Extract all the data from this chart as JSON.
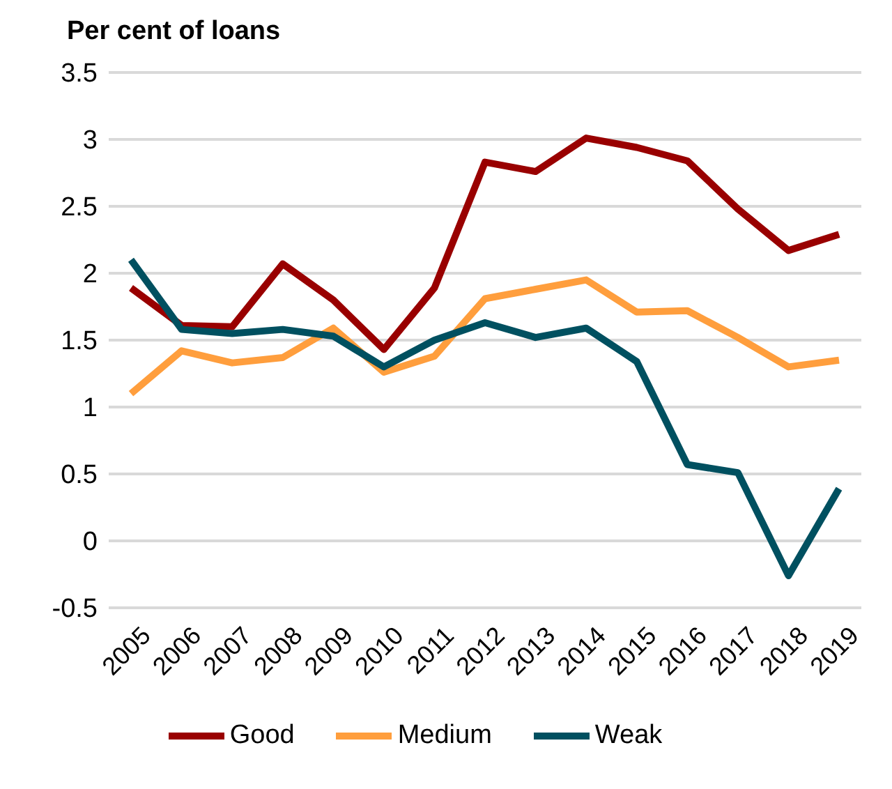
{
  "chart_data": {
    "type": "line",
    "ylabel": "Per cent of loans",
    "categories": [
      "2005",
      "2006",
      "2007",
      "2008",
      "2009",
      "2010",
      "2011",
      "2012",
      "2013",
      "2014",
      "2015",
      "2016",
      "2017",
      "2018",
      "2019"
    ],
    "series": [
      {
        "name": "Good",
        "color": "#990000",
        "values": [
          1.89,
          1.61,
          1.6,
          2.07,
          1.8,
          1.43,
          1.89,
          2.83,
          2.76,
          3.01,
          2.94,
          2.84,
          2.48,
          2.17,
          2.29
        ]
      },
      {
        "name": "Medium",
        "color": "#ff9e3d",
        "values": [
          1.1,
          1.42,
          1.33,
          1.37,
          1.59,
          1.26,
          1.38,
          1.81,
          1.88,
          1.95,
          1.71,
          1.72,
          1.52,
          1.3,
          1.35
        ]
      },
      {
        "name": "Weak",
        "color": "#005060",
        "values": [
          2.1,
          1.58,
          1.55,
          1.58,
          1.53,
          1.3,
          1.5,
          1.63,
          1.52,
          1.59,
          1.34,
          0.57,
          0.51,
          -0.26,
          0.39
        ]
      }
    ],
    "ylim": [
      -0.5,
      3.5
    ],
    "yticks": [
      -0.5,
      0,
      0.5,
      1,
      1.5,
      2,
      2.5,
      3,
      3.5
    ],
    "grid": "y",
    "legend": "bottom"
  }
}
